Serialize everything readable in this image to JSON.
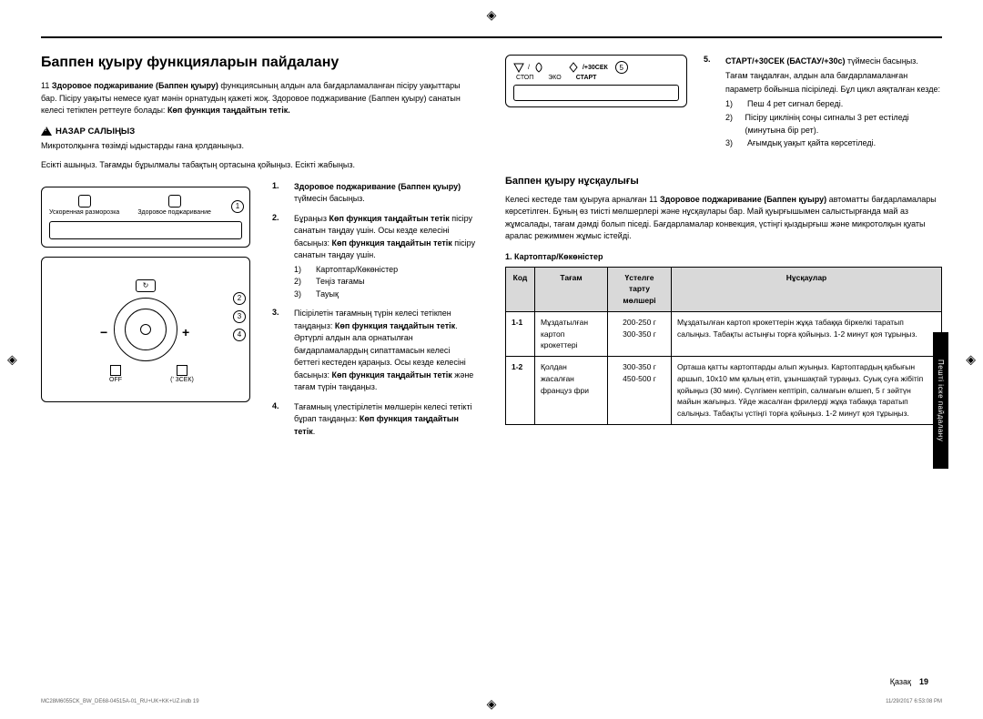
{
  "left": {
    "title": "Баппен қуыру функцияларын пайдалану",
    "intro_segments": [
      "11 ",
      "Здоровое поджаривание (Баппен қуыру)",
      " функциясының алдын ала бағдарламаланған пісіру уақыттары бар. Пісіру уақыты немесе қуат мәнін орнатудың қажеті жоқ. Здоровое поджаривание (Баппен қуыру) санатын келесі тетікпен реттеуге болады: ",
      "Көп функция таңдайтын тетік."
    ],
    "warning_label": "НАЗАР САЛЫҢЫЗ",
    "warning_text": "Микротолқынға төзімді ыдыстарды ғана қолданыңыз.",
    "open_door": "Есікті ашыңыз. Тағамды бұрылмалы табақтың ортасына қойыңыз. Есікті жабыңыз.",
    "panel": {
      "defrost_label": "Ускоренная разморозка",
      "fry_label": "Здоровое поджаривание",
      "off_label": "OFF",
      "sec_label": "(' 3СЕК)"
    },
    "steps": [
      {
        "n": "1.",
        "html": "<span class='bold'>Здоровое поджаривание (Баппен қуыру)</span> түймесін басыңыз."
      },
      {
        "n": "2.",
        "html": "Бұраңыз <span class='bold'>Көп функция таңдайтын тетік</span> пісіру санатын таңдау үшін. Осы кезде келесіні басыңыз: <span class='bold'>Көп функция таңдайтын тетік</span> пісіру санатын таңдау үшін.",
        "subs": [
          "Картоптар/Көкөністер",
          "Теңіз тағамы",
          "Тауық"
        ]
      },
      {
        "n": "3.",
        "html": "Пісірілетін тағамның түрін келесі тетікпен таңдаңыз: <span class='bold'>Көп функция таңдайтын тетік</span>. Әртүрлі алдын ала орнатылған бағдарламалардың сипаттамасын келесі беттегі кестеден қараңыз. Осы кезде келесіні басыңыз: <span class='bold'>Көп функция таңдайтын тетік</span> және тағам түрін таңдаңыз."
      },
      {
        "n": "4.",
        "html": "Тағамның үлестірілетін мөлшерін келесі тетікті бұрап таңдаңыз: <span class='bold'>Көп функция таңдайтын тетік</span>."
      }
    ]
  },
  "right": {
    "panel": {
      "stop": "СТОП",
      "eco": "ЭКО",
      "start": "СТАРТ",
      "plus30": "/+30СЕК"
    },
    "step5_num": "5.",
    "step5_title": "СТАРТ/+30СЕК (БАСТАУ/+30с)",
    "step5_title_tail": " түймесін басыңыз.",
    "step5_p1": "Тағам таңдалған, алдын ала бағдарламаланған параметр бойынша пісіріледі. Бұл цикл аяқталған кезде:",
    "step5_list": [
      "Пеш 4 рет сигнал береді.",
      "Пісіру циклінің соңы сигналы 3 рет естіледі (минутына бір рет).",
      "Ағымдық уақыт қайта көрсетіледі."
    ],
    "guide_title": "Баппен қуыру нұсқаулығы",
    "guide_intro_html": "Келесі кестеде там қуыруға арналған 11 <b>Здоровое поджаривание (Баппен қуыру)</b> автоматты бағдарламалары көрсетілген. Бұның өз тиісті мөлшерлері және нұсқаулары бар. Май қуырғышымен салыстырғанда май аз жұмсалады, тағам дәмді болып піседі. Бағдарламалар конвекция, үстіңгі қыздырғыш және микротолқын қуаты аралас режиммен жұмыс істейді.",
    "table_heading": "1. Картоптар/Көкөністер",
    "table": {
      "headers": [
        "Код",
        "Тағам",
        "Үстелге тарту мөлшері",
        "Нұсқаулар"
      ],
      "rows": [
        {
          "code": "1-1",
          "food": "Мұздатылған картоп крокеттері",
          "weight": "200-250 г\n300-350 г",
          "instr": "Мұздатылған картоп крокеттерін жұқа табаққа біркелкі таратып салыңыз. Табақты астыңғы торға қойыңыз. 1-2 минут қоя тұрыңыз."
        },
        {
          "code": "1-2",
          "food": "Қолдан жасалған француз фри",
          "weight": "300-350 г\n450-500 г",
          "instr": "Орташа қатты картоптарды алып жуыңыз. Картоптардың қабығын аршып, 10x10 мм қалың етіп, ұзыншақтай тураңыз. Суық суға жібітіп қойыңыз (30 мин). Сүлгімен кептіріп, салмағын өлшеп, 5 г зәйтүн майын жағыңыз. Үйде жасалған фрилерді жұқа табаққа таратып салыңыз. Табақты үстіңгі торға қойыңыз. 1-2 минут қоя тұрыңыз."
        }
      ]
    }
  },
  "side_tab": "Пешті іске пайдалану",
  "footer_lang": "Қазақ",
  "footer_page": "19",
  "print_left": "MC28M6055CK_BW_DE68-04515A-01_RU+UK+KK+UZ.indb   19",
  "print_right": "11/29/2017   6:53:08 PM"
}
